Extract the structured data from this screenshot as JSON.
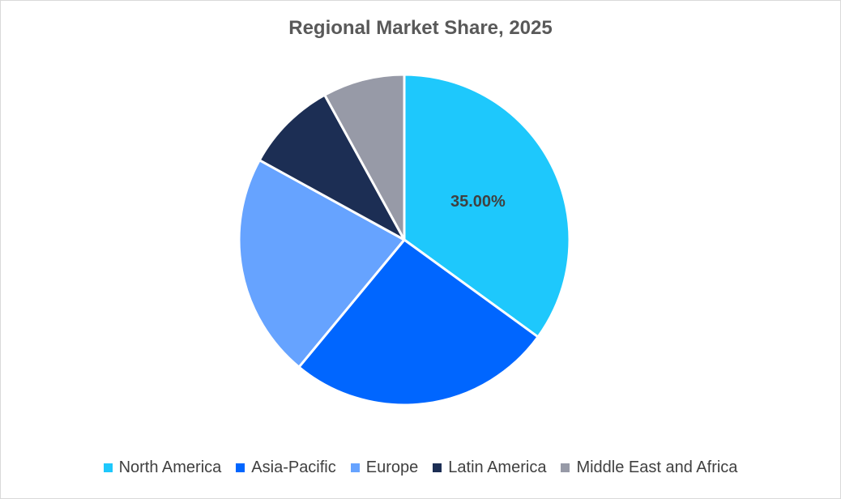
{
  "chart_data": {
    "type": "pie",
    "title": "Regional Market Share, 2025",
    "categories": [
      "North America",
      "Asia-Pacific",
      "Europe",
      "Latin America",
      "Middle East and Africa"
    ],
    "values": [
      35,
      26,
      22,
      9,
      8
    ],
    "colors": [
      "#1ec8fc",
      "#0066ff",
      "#66a3ff",
      "#1c2e54",
      "#979aa7"
    ],
    "data_labels": [
      "35.00%",
      "",
      "",
      "",
      ""
    ],
    "legend_position": "bottom"
  }
}
